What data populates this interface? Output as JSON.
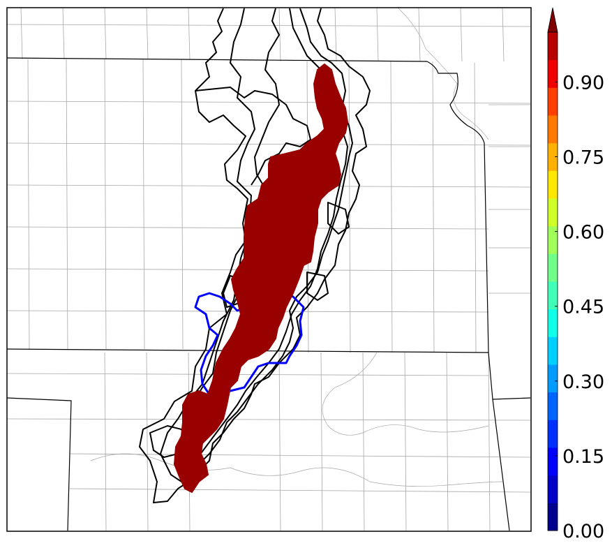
{
  "colorbar": {
    "ticks": [
      "0.00",
      "0.15",
      "0.30",
      "0.45",
      "0.60",
      "0.75",
      "0.90"
    ],
    "range": [
      0.0,
      1.0
    ],
    "extend": "max",
    "colors": [
      "#00008f",
      "#0000c8",
      "#0000ff",
      "#0030ff",
      "#0064ff",
      "#009cff",
      "#00d0ff",
      "#10ffe8",
      "#40ffb8",
      "#70ff88",
      "#a0ff58",
      "#d0ff28",
      "#ffe800",
      "#ffb000",
      "#ff7800",
      "#ff4000",
      "#f00000",
      "#b80000"
    ],
    "extend_color": "#7f0000"
  },
  "legend_colors": {
    "probability_fill": "#990000",
    "ensemble_contours": "#000000",
    "observed_contour": "#0000ff",
    "state_borders": "#000000",
    "county_borders": "#a6a6a6"
  }
}
